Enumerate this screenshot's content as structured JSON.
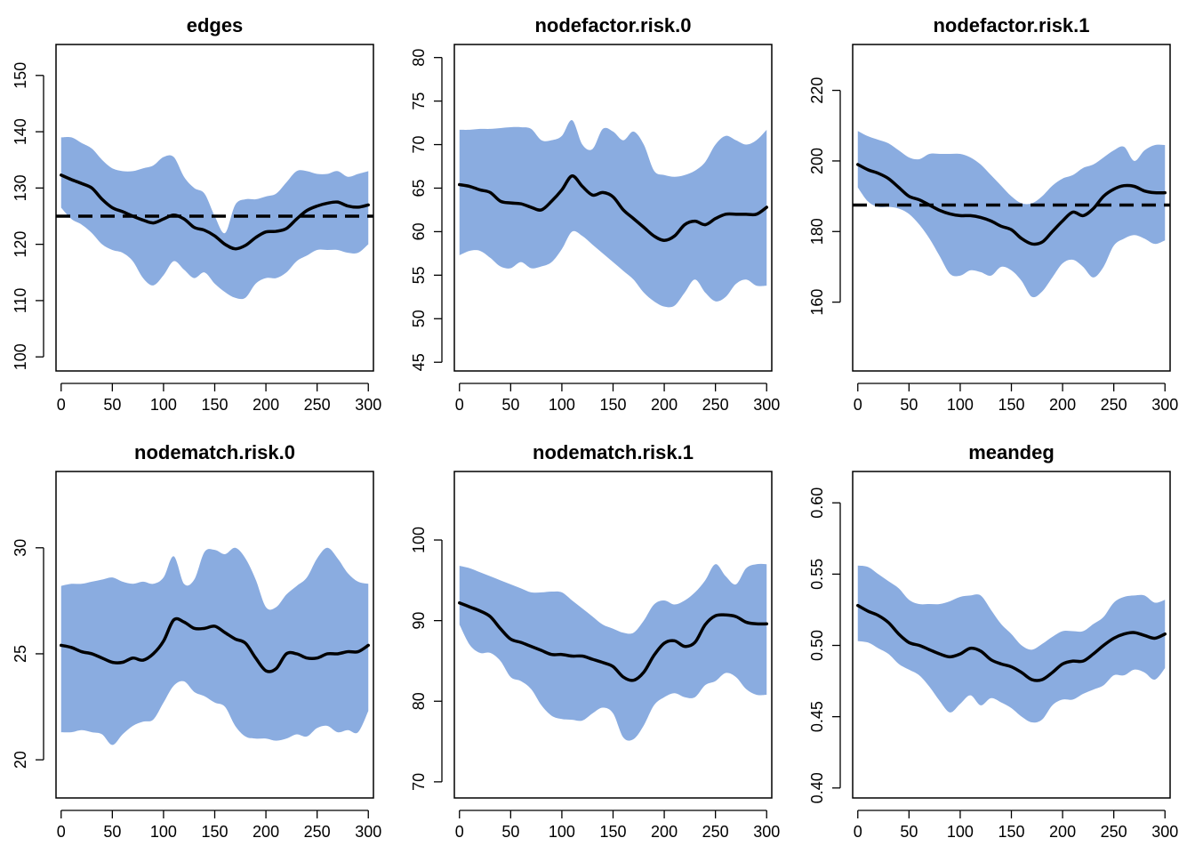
{
  "colors": {
    "band": "#8aace0",
    "line": "#000000",
    "target": "#000000"
  },
  "chart_data": [
    {
      "type": "area",
      "title": "edges",
      "x": [
        0,
        10,
        20,
        30,
        40,
        50,
        60,
        70,
        80,
        90,
        100,
        110,
        120,
        130,
        140,
        150,
        160,
        170,
        180,
        190,
        200,
        210,
        220,
        230,
        240,
        250,
        260,
        270,
        280,
        290,
        300
      ],
      "series": [
        {
          "role": "upper",
          "values": [
            139,
            139,
            138,
            137,
            135,
            133.5,
            133,
            133,
            133.5,
            134,
            135.5,
            135.5,
            132,
            130,
            129,
            125,
            122,
            127,
            128,
            128,
            128.5,
            129,
            131,
            133,
            133,
            132.5,
            132.5,
            133,
            132,
            132.5,
            133
          ]
        },
        {
          "role": "mean",
          "values": [
            132.3,
            131.5,
            130.8,
            130,
            128,
            126.5,
            125.8,
            125,
            124.3,
            123.8,
            124.5,
            125.2,
            124.5,
            123,
            122.5,
            121.5,
            120,
            119.2,
            119.8,
            121.2,
            122.2,
            122.3,
            122.8,
            124.5,
            126,
            126.8,
            127.3,
            127.5,
            126.8,
            126.6,
            127
          ]
        },
        {
          "role": "lower",
          "values": [
            126.5,
            124.5,
            123.5,
            122,
            120,
            119,
            118.5,
            117,
            114,
            112.7,
            114.5,
            117,
            115.5,
            114,
            115,
            113,
            111.5,
            110.5,
            110.5,
            113,
            114,
            114,
            115,
            117,
            118,
            119,
            119,
            119,
            118.5,
            118.5,
            120
          ]
        }
      ],
      "target": 125,
      "xticks": [
        0,
        50,
        100,
        150,
        200,
        250,
        300
      ],
      "yticks": [
        100,
        110,
        120,
        130,
        140,
        150
      ],
      "xlim": [
        -5,
        305
      ],
      "ylim": [
        97.5,
        155.5
      ]
    },
    {
      "type": "area",
      "title": "nodefactor.risk.0",
      "x": [
        0,
        10,
        20,
        30,
        40,
        50,
        60,
        70,
        80,
        90,
        100,
        110,
        120,
        130,
        140,
        150,
        160,
        170,
        180,
        190,
        200,
        210,
        220,
        230,
        240,
        250,
        260,
        270,
        280,
        290,
        300
      ],
      "series": [
        {
          "role": "upper",
          "values": [
            71.7,
            71.7,
            71.8,
            71.8,
            71.9,
            72,
            72,
            71.8,
            70.5,
            70.5,
            71,
            72.8,
            70,
            69.5,
            71.8,
            71.5,
            70.5,
            71.5,
            70,
            67,
            66.5,
            66.3,
            66.5,
            67,
            68,
            70,
            71,
            70.5,
            70,
            70.5,
            71.7
          ]
        },
        {
          "role": "mean",
          "values": [
            65.4,
            65.2,
            64.8,
            64.5,
            63.5,
            63.3,
            63.2,
            62.8,
            62.5,
            63.5,
            64.8,
            66.4,
            65.2,
            64.2,
            64.5,
            64,
            62.5,
            61.5,
            60.5,
            59.5,
            59,
            59.5,
            60.8,
            61.2,
            60.8,
            61.5,
            62,
            62,
            62,
            62,
            62.8
          ]
        },
        {
          "role": "lower",
          "values": [
            57.3,
            57.8,
            57.8,
            57,
            56,
            55.8,
            56.5,
            55.8,
            56,
            56.5,
            58,
            60,
            59.5,
            58.5,
            57.5,
            56.5,
            55.5,
            54.5,
            53,
            52,
            51.4,
            51.5,
            53,
            54.5,
            53,
            52,
            52.5,
            54,
            54.5,
            53.8,
            53.8
          ]
        }
      ],
      "target": null,
      "xticks": [
        0,
        50,
        100,
        150,
        200,
        250,
        300
      ],
      "yticks": [
        45,
        50,
        55,
        60,
        65,
        70,
        75,
        80
      ],
      "xlim": [
        -5,
        305
      ],
      "ylim": [
        44,
        81.5
      ]
    },
    {
      "type": "area",
      "title": "nodefactor.risk.1",
      "x": [
        0,
        10,
        20,
        30,
        40,
        50,
        60,
        70,
        80,
        90,
        100,
        110,
        120,
        130,
        140,
        150,
        160,
        170,
        180,
        190,
        200,
        210,
        220,
        230,
        240,
        250,
        260,
        270,
        280,
        290,
        300
      ],
      "series": [
        {
          "role": "upper",
          "values": [
            208.5,
            207,
            206,
            205,
            203,
            201,
            200.5,
            202,
            202,
            202,
            202,
            201,
            199,
            196,
            193,
            190,
            188,
            188,
            190,
            193,
            195,
            196,
            198,
            199,
            201,
            203,
            204,
            200,
            203,
            204.5,
            204.5
          ]
        },
        {
          "role": "mean",
          "values": [
            199,
            197.5,
            196.5,
            195,
            192.5,
            190,
            189,
            187.5,
            186,
            185,
            184.5,
            184.5,
            184,
            183,
            181.5,
            180.5,
            178,
            176.5,
            177,
            180,
            183,
            185.5,
            184.5,
            186.5,
            190,
            192,
            193,
            192.8,
            191.5,
            191,
            191
          ]
        },
        {
          "role": "lower",
          "values": [
            192.5,
            188.5,
            187,
            187,
            186.5,
            185,
            182,
            178,
            173,
            168,
            167.5,
            169,
            168.5,
            167.5,
            170,
            169,
            166,
            161.5,
            163,
            167,
            171,
            172,
            170,
            167,
            170,
            176,
            178,
            179,
            178,
            176.5,
            177.5
          ]
        }
      ],
      "target": 187.5,
      "xticks": [
        0,
        50,
        100,
        150,
        200,
        250,
        300
      ],
      "yticks": [
        160,
        180,
        200,
        220
      ],
      "xlim": [
        -5,
        305
      ],
      "ylim": [
        140.5,
        233
      ]
    },
    {
      "type": "area",
      "title": "nodematch.risk.0",
      "x": [
        0,
        10,
        20,
        30,
        40,
        50,
        60,
        70,
        80,
        90,
        100,
        110,
        120,
        130,
        140,
        150,
        160,
        170,
        180,
        190,
        200,
        210,
        220,
        230,
        240,
        250,
        260,
        270,
        280,
        290,
        300
      ],
      "series": [
        {
          "role": "upper",
          "values": [
            28.2,
            28.3,
            28.3,
            28.4,
            28.5,
            28.6,
            28.4,
            28.3,
            28.4,
            28.3,
            28.6,
            29.6,
            28.3,
            28.5,
            29.8,
            29.9,
            29.7,
            30.0,
            29.5,
            28.5,
            27.2,
            27.2,
            27.8,
            28.2,
            28.6,
            29.5,
            30.0,
            29.5,
            28.8,
            28.4,
            28.3
          ]
        },
        {
          "role": "mean",
          "values": [
            25.4,
            25.3,
            25.1,
            25.0,
            24.8,
            24.6,
            24.6,
            24.8,
            24.7,
            25.0,
            25.6,
            26.6,
            26.5,
            26.2,
            26.2,
            26.3,
            26.0,
            25.7,
            25.5,
            24.8,
            24.2,
            24.3,
            25.0,
            25.0,
            24.8,
            24.8,
            25.0,
            25.0,
            25.1,
            25.1,
            25.4
          ]
        },
        {
          "role": "lower",
          "values": [
            21.3,
            21.3,
            21.4,
            21.3,
            21.2,
            20.7,
            21.2,
            21.6,
            21.8,
            21.9,
            22.7,
            23.5,
            23.7,
            23.2,
            23.0,
            22.7,
            22.5,
            21.6,
            21.1,
            21.0,
            21.0,
            20.9,
            21.0,
            21.2,
            21.1,
            21.5,
            21.6,
            21.3,
            21.4,
            21.3,
            22.3
          ]
        }
      ],
      "target": null,
      "xticks": [
        0,
        50,
        100,
        150,
        200,
        250,
        300
      ],
      "yticks": [
        20,
        25,
        30
      ],
      "xlim": [
        -5,
        305
      ],
      "ylim": [
        18.2,
        33.6
      ]
    },
    {
      "type": "area",
      "title": "nodematch.risk.1",
      "x": [
        0,
        10,
        20,
        30,
        40,
        50,
        60,
        70,
        80,
        90,
        100,
        110,
        120,
        130,
        140,
        150,
        160,
        170,
        180,
        190,
        200,
        210,
        220,
        230,
        240,
        250,
        260,
        270,
        280,
        290,
        300
      ],
      "series": [
        {
          "role": "upper",
          "values": [
            96.8,
            96.5,
            96,
            95.5,
            95,
            94.5,
            94,
            93.5,
            93.5,
            93.6,
            93.5,
            92.5,
            91.5,
            90.5,
            89.5,
            89,
            88.5,
            88.5,
            90,
            92,
            92.5,
            92,
            92.5,
            93.5,
            95,
            97,
            95.5,
            94.5,
            96.5,
            97,
            97
          ]
        },
        {
          "role": "mean",
          "values": [
            92.2,
            91.7,
            91.2,
            90.5,
            89,
            87.7,
            87.3,
            86.8,
            86.3,
            85.8,
            85.8,
            85.6,
            85.6,
            85.2,
            84.8,
            84.3,
            83,
            82.6,
            83.6,
            85.7,
            87.2,
            87.5,
            86.8,
            87.3,
            89.5,
            90.6,
            90.7,
            90.5,
            89.8,
            89.6,
            89.6
          ]
        },
        {
          "role": "lower",
          "values": [
            89.5,
            87,
            86,
            86,
            85,
            83,
            82.5,
            81.5,
            79.5,
            78.2,
            77.8,
            77.7,
            77.6,
            78.5,
            79.2,
            78.5,
            75.5,
            75.3,
            77,
            79.5,
            80.5,
            81,
            80.5,
            80.5,
            82,
            82.5,
            83.5,
            83,
            81.5,
            80.8,
            80.8
          ]
        }
      ],
      "target": null,
      "xticks": [
        0,
        50,
        100,
        150,
        200,
        250,
        300
      ],
      "yticks": [
        70,
        80,
        90,
        100
      ],
      "xlim": [
        -5,
        305
      ],
      "ylim": [
        68,
        108.5
      ]
    },
    {
      "type": "area",
      "title": "meandeg",
      "x": [
        0,
        10,
        20,
        30,
        40,
        50,
        60,
        70,
        80,
        90,
        100,
        110,
        120,
        130,
        140,
        150,
        160,
        170,
        180,
        190,
        200,
        210,
        220,
        230,
        240,
        250,
        260,
        270,
        280,
        290,
        300
      ],
      "series": [
        {
          "role": "upper",
          "values": [
            0.556,
            0.555,
            0.55,
            0.545,
            0.54,
            0.532,
            0.529,
            0.529,
            0.529,
            0.531,
            0.534,
            0.535,
            0.535,
            0.525,
            0.515,
            0.508,
            0.5,
            0.497,
            0.501,
            0.506,
            0.51,
            0.51,
            0.51,
            0.515,
            0.52,
            0.53,
            0.534,
            0.535,
            0.535,
            0.53,
            0.532
          ]
        },
        {
          "role": "mean",
          "values": [
            0.528,
            0.524,
            0.521,
            0.516,
            0.508,
            0.502,
            0.5,
            0.497,
            0.494,
            0.492,
            0.494,
            0.498,
            0.496,
            0.49,
            0.487,
            0.485,
            0.481,
            0.476,
            0.476,
            0.481,
            0.487,
            0.489,
            0.489,
            0.494,
            0.5,
            0.505,
            0.508,
            0.509,
            0.507,
            0.505,
            0.508
          ]
        },
        {
          "role": "lower",
          "values": [
            0.503,
            0.502,
            0.498,
            0.494,
            0.487,
            0.483,
            0.479,
            0.471,
            0.461,
            0.453,
            0.459,
            0.465,
            0.458,
            0.463,
            0.46,
            0.456,
            0.45,
            0.446,
            0.448,
            0.458,
            0.462,
            0.462,
            0.466,
            0.469,
            0.472,
            0.479,
            0.479,
            0.483,
            0.481,
            0.476,
            0.484
          ]
        }
      ],
      "target": null,
      "xticks": [
        0,
        50,
        100,
        150,
        200,
        250,
        300
      ],
      "yticks": [
        "0.40",
        "0.45",
        "0.50",
        "0.55",
        "0.60"
      ],
      "xlim": [
        -5,
        305
      ],
      "ylim": [
        0.393,
        0.622
      ]
    }
  ]
}
